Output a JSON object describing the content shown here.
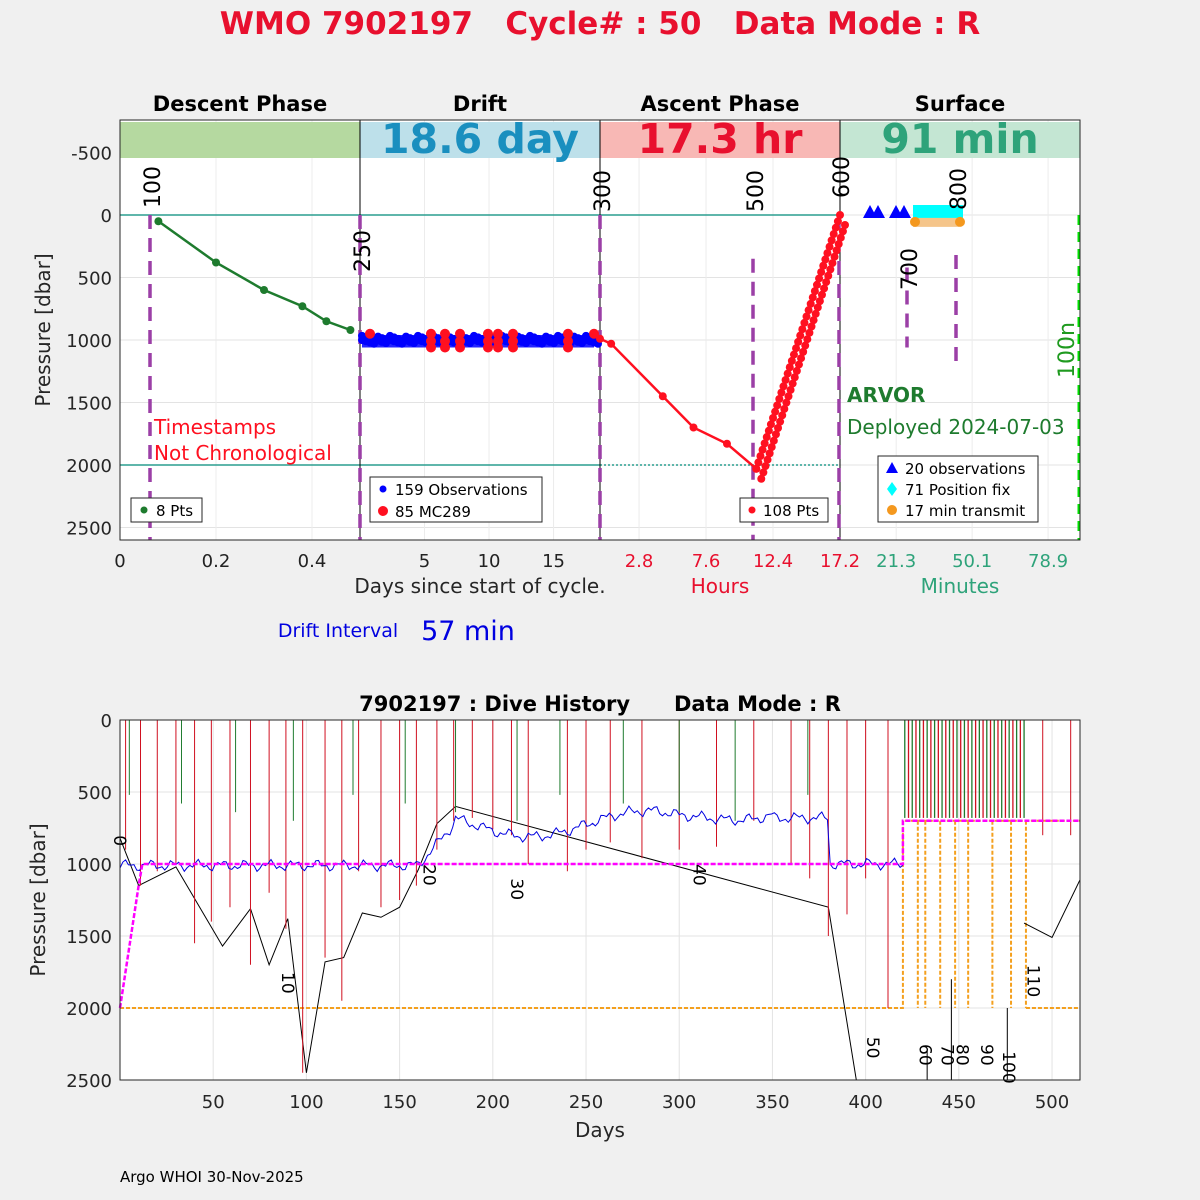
{
  "title": {
    "text": "WMO 7902197   Cycle# : 50   Data Mode : R",
    "color": "#e8102e"
  },
  "top_chart": {
    "ylabel": "Pressure [dbar]",
    "yticks": [
      -500,
      0,
      500,
      1000,
      1500,
      2000,
      2500
    ],
    "ylim": [
      -760,
      2600
    ],
    "phases": [
      {
        "name": "Descent Phase",
        "band_text": "",
        "band_color": "#b5d9a0",
        "text_color": "#000000"
      },
      {
        "name": "Drift",
        "band_text": "18.6 day",
        "band_color": "#bde0ea",
        "text_color": "#1a8fbf"
      },
      {
        "name": "Ascent Phase",
        "band_text": "17.3 hr",
        "band_color": "#f8b8b5",
        "text_color": "#e8102e"
      },
      {
        "name": "Surface",
        "band_text": "91 min",
        "band_color": "#c4e6d3",
        "text_color": "#2ea37a"
      }
    ],
    "x_panels": [
      {
        "ticks": [
          "0",
          "0.2",
          "0.4"
        ],
        "tick_color": "#222222",
        "xrange": [
          0,
          0.5
        ],
        "tick_values": [
          0,
          0.2,
          0.4
        ]
      },
      {
        "ticks": [
          "5",
          "10",
          "15"
        ],
        "tick_color": "#222222",
        "xrange": [
          0,
          18.6
        ],
        "tick_values": [
          5,
          10,
          15
        ]
      },
      {
        "ticks": [
          "2.8",
          "7.6",
          "12.4",
          "17.2"
        ],
        "tick_color": "#e8102e",
        "xrange": [
          0,
          17.2
        ],
        "tick_values": [
          2.8,
          7.6,
          12.4,
          17.2
        ]
      },
      {
        "ticks": [
          "21.3",
          "50.1",
          "78.9"
        ],
        "tick_color": "#2ea37a",
        "xrange": [
          0,
          91
        ],
        "tick_values": [
          21.3,
          50.1,
          78.9
        ]
      }
    ],
    "xlabel_days": "Days since start of cycle.",
    "xlabel_hours": "Hours",
    "xlabel_minutes": "Minutes",
    "drift_interval_label": "Drift Interval",
    "drift_interval_value": "57 min",
    "warning_line1": "Timestamps",
    "warning_line2": "Not Chronological",
    "float_type": "ARVOR",
    "deployed": "Deployed 2024-07-03",
    "event_markers": [
      "100",
      "250",
      "300",
      "500",
      "600",
      "700",
      "800",
      "100n"
    ],
    "legend_descent": "8 Pts",
    "legend_drift_obs": "159 Observations",
    "legend_drift_mc": "85 MC289",
    "legend_ascent": "108 Pts",
    "legend_surface_obs": "20 observations",
    "legend_surface_pos": "71 Position fix",
    "legend_surface_tx": "17 min transmit",
    "descent_points": [
      {
        "t": 0.08,
        "p": 50
      },
      {
        "t": 0.2,
        "p": 380
      },
      {
        "t": 0.3,
        "p": 600
      },
      {
        "t": 0.38,
        "p": 730
      },
      {
        "t": 0.43,
        "p": 850
      },
      {
        "t": 0.48,
        "p": 920
      }
    ],
    "ascent_points": [
      {
        "t": 0.0,
        "p": 990
      },
      {
        "t": 0.8,
        "p": 1030
      },
      {
        "t": 4.5,
        "p": 1450
      },
      {
        "t": 6.7,
        "p": 1700
      },
      {
        "t": 9.1,
        "p": 1830
      },
      {
        "t": 11.2,
        "p": 2030
      },
      {
        "t": 17.2,
        "p": 0
      }
    ]
  },
  "bottom_chart": {
    "title": "7902197 : Dive History      Data Mode : R",
    "ylabel": "Pressure [dbar]",
    "xlabel": "Days",
    "xticks": [
      50,
      100,
      150,
      200,
      250,
      300,
      350,
      400,
      450,
      500
    ],
    "yticks": [
      0,
      500,
      1000,
      1500,
      2000,
      2500
    ],
    "xlim": [
      0,
      515
    ],
    "ylim": [
      0,
      2500
    ],
    "cycle_labels": [
      "0",
      "10",
      "20",
      "30",
      "40",
      "50",
      "60",
      "70",
      "80",
      "90",
      "100",
      "110"
    ],
    "park_pressure_line": [
      [
        0,
        2000
      ],
      [
        10,
        1150
      ],
      [
        12,
        1000
      ],
      [
        420,
        1000
      ],
      [
        420,
        700
      ],
      [
        515,
        700
      ]
    ],
    "profile_pressure_line": [
      [
        0,
        2000
      ],
      [
        420,
        2000
      ],
      [
        420,
        700
      ],
      [
        430,
        700
      ],
      [
        430,
        2000
      ],
      [
        485,
        2000
      ],
      [
        485,
        2000
      ],
      [
        515,
        2000
      ]
    ],
    "bottom_track": [
      [
        0,
        820
      ],
      [
        10,
        1150
      ],
      [
        30,
        1020
      ],
      [
        55,
        1570
      ],
      [
        70,
        1310
      ],
      [
        80,
        1700
      ],
      [
        90,
        1380
      ],
      [
        100,
        2450
      ],
      [
        110,
        1680
      ],
      [
        120,
        1650
      ],
      [
        130,
        1340
      ],
      [
        140,
        1370
      ],
      [
        150,
        1300
      ],
      [
        160,
        1040
      ],
      [
        170,
        720
      ],
      [
        180,
        600
      ],
      [
        380,
        1300
      ],
      [
        395,
        2500
      ]
    ],
    "late_track": [
      [
        485,
        1410
      ],
      [
        500,
        1510
      ],
      [
        515,
        1110
      ]
    ]
  },
  "footer": "Argo WHOI 30-Nov-2025"
}
